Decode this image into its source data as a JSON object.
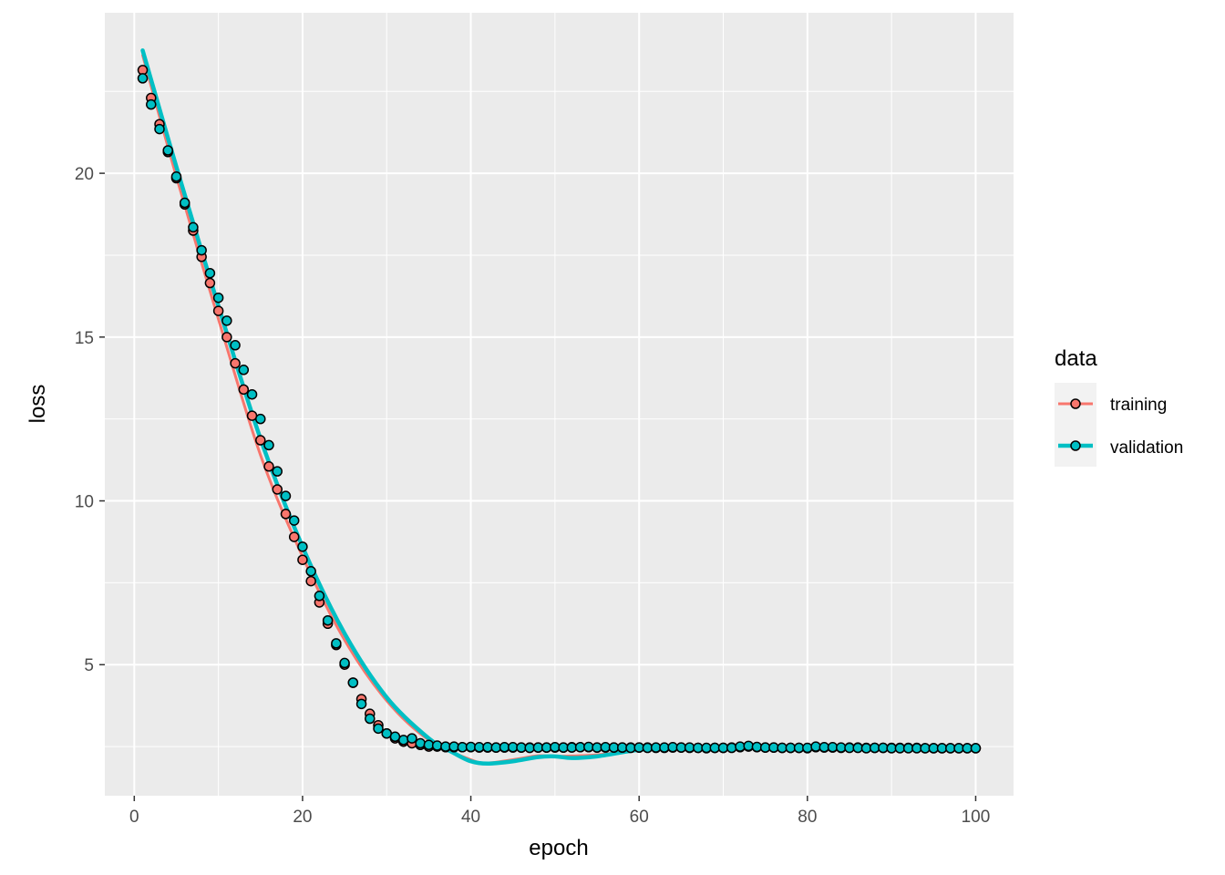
{
  "chart_data": {
    "type": "scatter",
    "xlabel": "epoch",
    "ylabel": "loss",
    "xlim": [
      -3.5,
      104.5
    ],
    "ylim": [
      1.0,
      24.9
    ],
    "x_ticks": [
      0,
      20,
      40,
      60,
      80,
      100
    ],
    "y_ticks": [
      5,
      10,
      15,
      20
    ],
    "grid": true,
    "legend": {
      "title": "data",
      "position": "right",
      "entries": [
        {
          "label": "training",
          "color": "#F8766D"
        },
        {
          "label": "validation",
          "color": "#00BFC4"
        }
      ]
    },
    "series": [
      {
        "name": "training",
        "color": "#F8766D",
        "points": [
          [
            1,
            23.15
          ],
          [
            2,
            22.3
          ],
          [
            3,
            21.5
          ],
          [
            4,
            20.65
          ],
          [
            5,
            19.85
          ],
          [
            6,
            19.05
          ],
          [
            7,
            18.25
          ],
          [
            8,
            17.45
          ],
          [
            9,
            16.65
          ],
          [
            10,
            15.8
          ],
          [
            11,
            15.0
          ],
          [
            12,
            14.2
          ],
          [
            13,
            13.4
          ],
          [
            14,
            12.6
          ],
          [
            15,
            11.85
          ],
          [
            16,
            11.05
          ],
          [
            17,
            10.35
          ],
          [
            18,
            9.6
          ],
          [
            19,
            8.9
          ],
          [
            20,
            8.2
          ],
          [
            21,
            7.55
          ],
          [
            22,
            6.9
          ],
          [
            23,
            6.25
          ],
          [
            24,
            5.6
          ],
          [
            25,
            5.0
          ],
          [
            26,
            4.45
          ],
          [
            27,
            3.95
          ],
          [
            28,
            3.5
          ],
          [
            29,
            3.15
          ],
          [
            30,
            2.9
          ],
          [
            31,
            2.75
          ],
          [
            32,
            2.65
          ],
          [
            33,
            2.6
          ],
          [
            34,
            2.55
          ],
          [
            35,
            2.5
          ],
          [
            36,
            2.5
          ],
          [
            37,
            2.48
          ],
          [
            38,
            2.48
          ],
          [
            39,
            2.48
          ],
          [
            40,
            2.48
          ],
          [
            41,
            2.47
          ],
          [
            42,
            2.47
          ],
          [
            43,
            2.47
          ],
          [
            44,
            2.47
          ],
          [
            45,
            2.47
          ],
          [
            46,
            2.47
          ],
          [
            47,
            2.47
          ],
          [
            48,
            2.47
          ],
          [
            49,
            2.47
          ],
          [
            50,
            2.47
          ],
          [
            51,
            2.47
          ],
          [
            52,
            2.48
          ],
          [
            53,
            2.48
          ],
          [
            54,
            2.48
          ],
          [
            55,
            2.47
          ],
          [
            56,
            2.47
          ],
          [
            57,
            2.47
          ],
          [
            58,
            2.47
          ],
          [
            59,
            2.47
          ],
          [
            60,
            2.47
          ],
          [
            61,
            2.47
          ],
          [
            62,
            2.46
          ],
          [
            63,
            2.46
          ],
          [
            64,
            2.47
          ],
          [
            65,
            2.47
          ],
          [
            66,
            2.46
          ],
          [
            67,
            2.46
          ],
          [
            68,
            2.45
          ],
          [
            69,
            2.46
          ],
          [
            70,
            2.46
          ],
          [
            71,
            2.47
          ],
          [
            72,
            2.48
          ],
          [
            73,
            2.5
          ],
          [
            74,
            2.48
          ],
          [
            75,
            2.47
          ],
          [
            76,
            2.47
          ],
          [
            77,
            2.46
          ],
          [
            78,
            2.46
          ],
          [
            79,
            2.46
          ],
          [
            80,
            2.45
          ],
          [
            81,
            2.48
          ],
          [
            82,
            2.47
          ],
          [
            83,
            2.47
          ],
          [
            84,
            2.46
          ],
          [
            85,
            2.47
          ],
          [
            86,
            2.47
          ],
          [
            87,
            2.46
          ],
          [
            88,
            2.46
          ],
          [
            89,
            2.46
          ],
          [
            90,
            2.46
          ],
          [
            91,
            2.46
          ],
          [
            92,
            2.46
          ],
          [
            93,
            2.46
          ],
          [
            94,
            2.45
          ],
          [
            95,
            2.45
          ],
          [
            96,
            2.45
          ],
          [
            97,
            2.45
          ],
          [
            98,
            2.45
          ],
          [
            99,
            2.45
          ],
          [
            100,
            2.45
          ]
        ],
        "smooth": [
          [
            1,
            23.6
          ],
          [
            5,
            19.9
          ],
          [
            10,
            15.55
          ],
          [
            15,
            11.4
          ],
          [
            20,
            8.3
          ],
          [
            25,
            5.75
          ],
          [
            30,
            3.9
          ],
          [
            35,
            2.7
          ],
          [
            40,
            2.1
          ],
          [
            42,
            2.0
          ],
          [
            45,
            2.1
          ],
          [
            48,
            2.22
          ],
          [
            50,
            2.2
          ],
          [
            55,
            2.25
          ],
          [
            60,
            2.4
          ],
          [
            65,
            2.47
          ],
          [
            70,
            2.46
          ],
          [
            75,
            2.46
          ],
          [
            80,
            2.45
          ],
          [
            90,
            2.45
          ],
          [
            100,
            2.45
          ]
        ]
      },
      {
        "name": "validation",
        "color": "#00BFC4",
        "points": [
          [
            1,
            22.9
          ],
          [
            2,
            22.1
          ],
          [
            3,
            21.35
          ],
          [
            4,
            20.7
          ],
          [
            5,
            19.9
          ],
          [
            6,
            19.1
          ],
          [
            7,
            18.35
          ],
          [
            8,
            17.65
          ],
          [
            9,
            16.95
          ],
          [
            10,
            16.2
          ],
          [
            11,
            15.5
          ],
          [
            12,
            14.75
          ],
          [
            13,
            14.0
          ],
          [
            14,
            13.25
          ],
          [
            15,
            12.5
          ],
          [
            16,
            11.7
          ],
          [
            17,
            10.9
          ],
          [
            18,
            10.15
          ],
          [
            19,
            9.4
          ],
          [
            20,
            8.6
          ],
          [
            21,
            7.85
          ],
          [
            22,
            7.1
          ],
          [
            23,
            6.35
          ],
          [
            24,
            5.65
          ],
          [
            25,
            5.05
          ],
          [
            26,
            4.45
          ],
          [
            27,
            3.8
          ],
          [
            28,
            3.35
          ],
          [
            29,
            3.05
          ],
          [
            30,
            2.9
          ],
          [
            31,
            2.8
          ],
          [
            32,
            2.7
          ],
          [
            33,
            2.75
          ],
          [
            34,
            2.6
          ],
          [
            35,
            2.55
          ],
          [
            36,
            2.53
          ],
          [
            37,
            2.5
          ],
          [
            38,
            2.5
          ],
          [
            39,
            2.48
          ],
          [
            40,
            2.49
          ],
          [
            41,
            2.48
          ],
          [
            42,
            2.48
          ],
          [
            43,
            2.47
          ],
          [
            44,
            2.48
          ],
          [
            45,
            2.48
          ],
          [
            46,
            2.47
          ],
          [
            47,
            2.46
          ],
          [
            48,
            2.47
          ],
          [
            49,
            2.47
          ],
          [
            50,
            2.48
          ],
          [
            51,
            2.47
          ],
          [
            52,
            2.47
          ],
          [
            53,
            2.48
          ],
          [
            54,
            2.49
          ],
          [
            55,
            2.47
          ],
          [
            56,
            2.48
          ],
          [
            57,
            2.47
          ],
          [
            58,
            2.47
          ],
          [
            59,
            2.46
          ],
          [
            60,
            2.47
          ],
          [
            61,
            2.46
          ],
          [
            62,
            2.47
          ],
          [
            63,
            2.47
          ],
          [
            64,
            2.48
          ],
          [
            65,
            2.47
          ],
          [
            66,
            2.47
          ],
          [
            67,
            2.46
          ],
          [
            68,
            2.46
          ],
          [
            69,
            2.46
          ],
          [
            70,
            2.46
          ],
          [
            71,
            2.46
          ],
          [
            72,
            2.5
          ],
          [
            73,
            2.52
          ],
          [
            74,
            2.49
          ],
          [
            75,
            2.47
          ],
          [
            76,
            2.47
          ],
          [
            77,
            2.46
          ],
          [
            78,
            2.46
          ],
          [
            79,
            2.46
          ],
          [
            80,
            2.46
          ],
          [
            81,
            2.5
          ],
          [
            82,
            2.48
          ],
          [
            83,
            2.48
          ],
          [
            84,
            2.47
          ],
          [
            85,
            2.46
          ],
          [
            86,
            2.46
          ],
          [
            87,
            2.45
          ],
          [
            88,
            2.46
          ],
          [
            89,
            2.46
          ],
          [
            90,
            2.45
          ],
          [
            91,
            2.45
          ],
          [
            92,
            2.45
          ],
          [
            93,
            2.45
          ],
          [
            94,
            2.45
          ],
          [
            95,
            2.45
          ],
          [
            96,
            2.45
          ],
          [
            97,
            2.45
          ],
          [
            98,
            2.45
          ],
          [
            99,
            2.45
          ],
          [
            100,
            2.45
          ]
        ],
        "smooth": [
          [
            1,
            23.75
          ],
          [
            5,
            20.2
          ],
          [
            10,
            15.95
          ],
          [
            15,
            11.9
          ],
          [
            20,
            8.6
          ],
          [
            25,
            5.95
          ],
          [
            30,
            4.0
          ],
          [
            35,
            2.75
          ],
          [
            38,
            2.3
          ],
          [
            40,
            2.05
          ],
          [
            42,
            1.98
          ],
          [
            45,
            2.05
          ],
          [
            48,
            2.18
          ],
          [
            50,
            2.2
          ],
          [
            52,
            2.15
          ],
          [
            55,
            2.2
          ],
          [
            60,
            2.4
          ],
          [
            65,
            2.47
          ],
          [
            70,
            2.46
          ],
          [
            75,
            2.46
          ],
          [
            80,
            2.45
          ],
          [
            90,
            2.45
          ],
          [
            100,
            2.45
          ]
        ]
      }
    ]
  }
}
